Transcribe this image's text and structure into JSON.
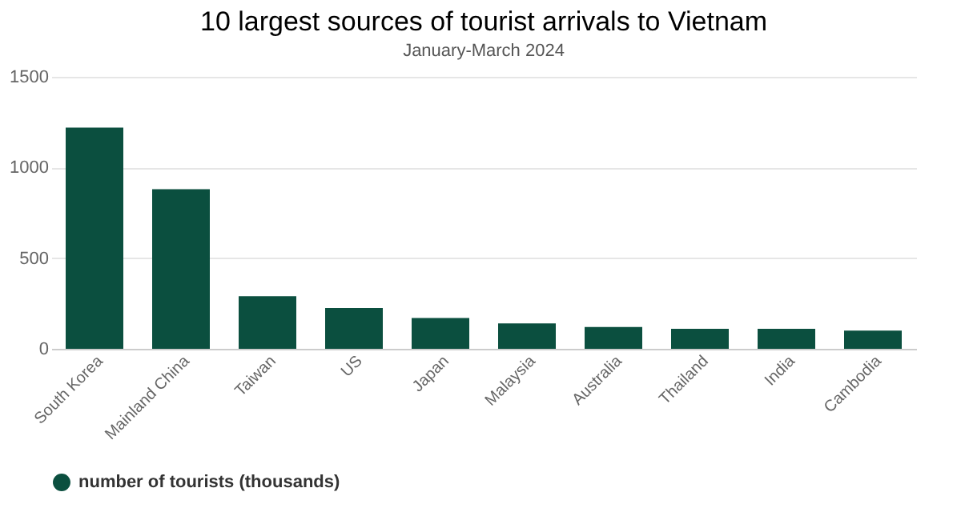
{
  "chart_data": {
    "type": "bar",
    "title": "10 largest sources of tourist arrivals to Vietnam",
    "subtitle": "January-March 2024",
    "categories": [
      "South Korea",
      "Mainland China",
      "Taiwan",
      "US",
      "Japan",
      "Malaysia",
      "Australia",
      "Thailand",
      "India",
      "Cambodia"
    ],
    "series": [
      {
        "name": "number of tourists (thousands)",
        "color": "#0b4f3f",
        "values": [
          1220,
          880,
          290,
          225,
          170,
          140,
          120,
          110,
          110,
          100
        ]
      }
    ],
    "ylim": [
      0,
      1500
    ],
    "yticks": [
      0,
      500,
      1000,
      1500
    ],
    "grid": "y",
    "legend": "bottom"
  }
}
